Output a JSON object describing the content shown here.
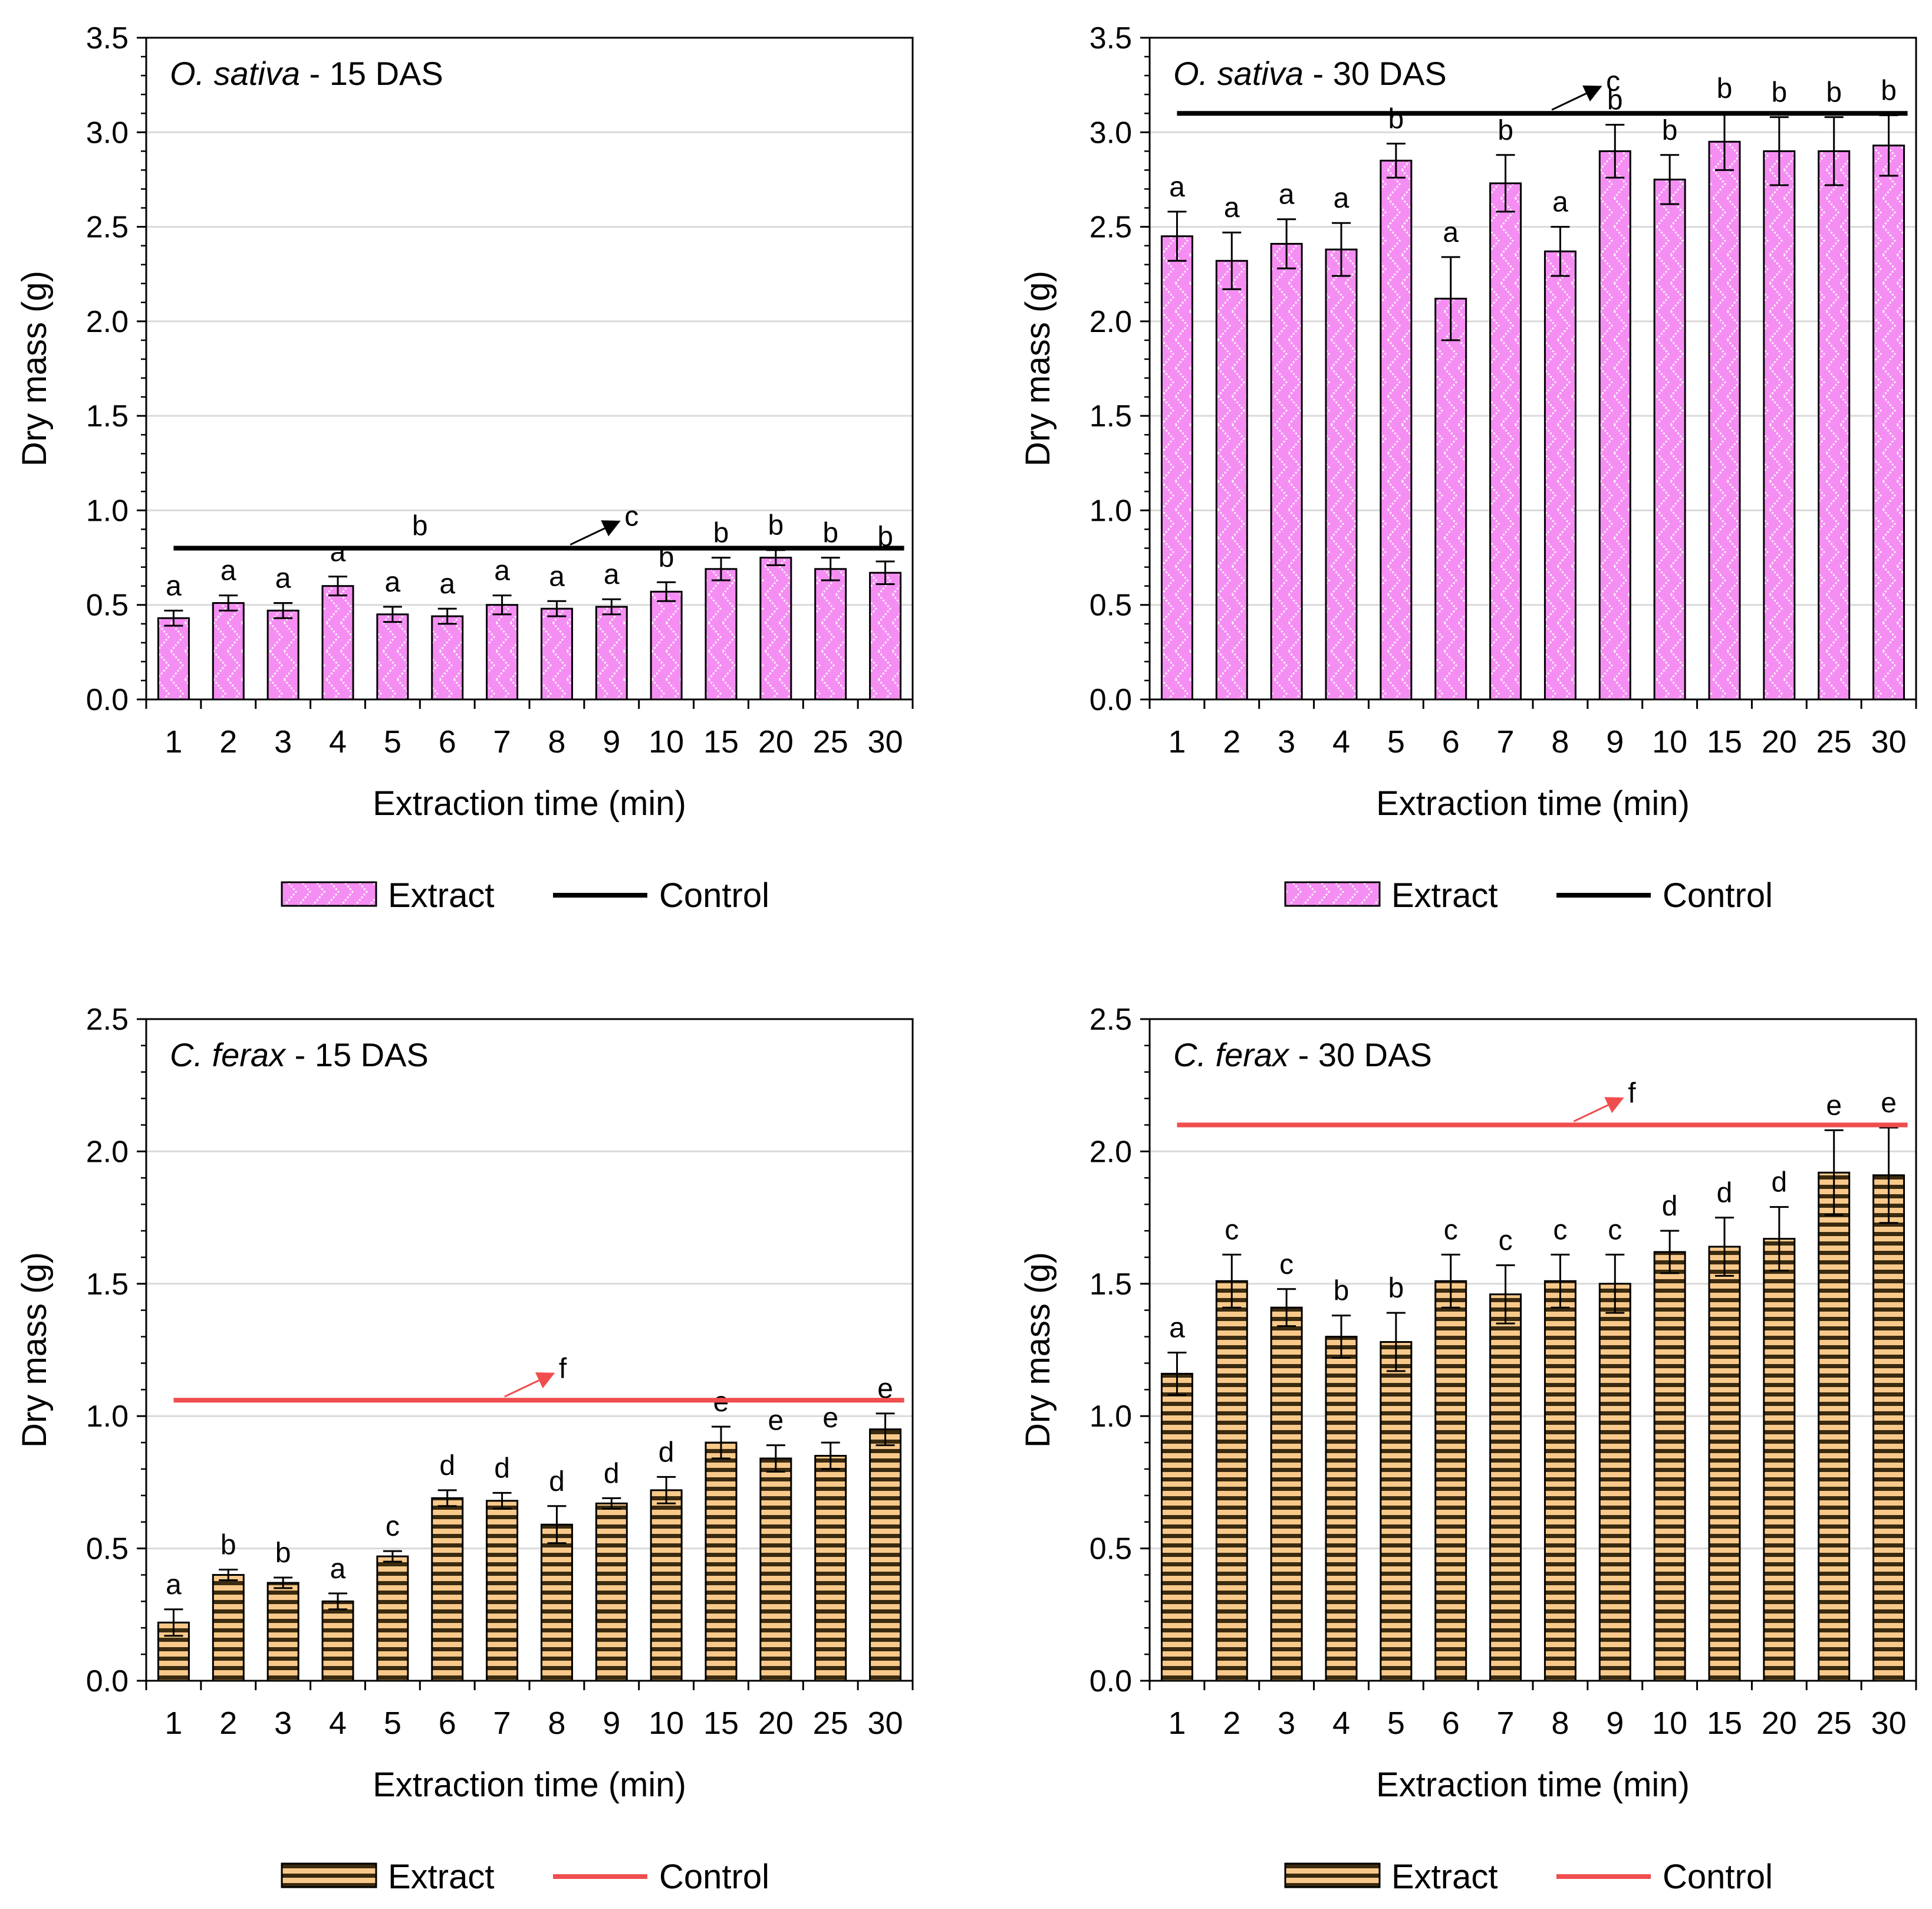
{
  "chart_data": [
    {
      "type": "bar",
      "title_italic": "O. sativa",
      "title_rest": " - 15 DAS",
      "xlabel": "Extraction time (min)",
      "ylabel": "Dry mass (g)",
      "ylim": [
        0,
        3.5
      ],
      "yticks": [
        "0.0",
        "0.5",
        "1.0",
        "1.5",
        "2.0",
        "2.5",
        "3.0",
        "3.5"
      ],
      "categories": [
        "1",
        "2",
        "3",
        "4",
        "5",
        "6",
        "7",
        "8",
        "9",
        "10",
        "15",
        "20",
        "25",
        "30"
      ],
      "series": [
        {
          "name": "Extract",
          "values": [
            0.43,
            0.51,
            0.47,
            0.6,
            0.45,
            0.44,
            0.5,
            0.48,
            0.49,
            0.57,
            0.69,
            0.75,
            0.69,
            0.67
          ],
          "errors": [
            0.04,
            0.04,
            0.04,
            0.05,
            0.04,
            0.04,
            0.05,
            0.04,
            0.04,
            0.05,
            0.06,
            0.04,
            0.06,
            0.06
          ]
        },
        {
          "name": "Control",
          "value": 0.8
        }
      ],
      "bar_letters": [
        "a",
        "a",
        "a",
        "a",
        "a",
        "a",
        "a",
        "a",
        "a",
        "b",
        "b",
        "b",
        "b",
        "b"
      ],
      "control_letters": [
        {
          "text": "b",
          "x": 4.5
        }
      ],
      "arrow_letter": "c",
      "arrow_at": 8,
      "legend": [
        "Extract",
        "Control"
      ],
      "style": "pink",
      "control_color": "#000000"
    },
    {
      "type": "bar",
      "title_italic": "O. sativa",
      "title_rest": " - 30 DAS",
      "xlabel": "Extraction time (min)",
      "ylabel": "Dry mass (g)",
      "ylim": [
        0,
        3.5
      ],
      "yticks": [
        "0.0",
        "0.5",
        "1.0",
        "1.5",
        "2.0",
        "2.5",
        "3.0",
        "3.5"
      ],
      "categories": [
        "1",
        "2",
        "3",
        "4",
        "5",
        "6",
        "7",
        "8",
        "9",
        "10",
        "15",
        "20",
        "25",
        "30"
      ],
      "series": [
        {
          "name": "Extract",
          "values": [
            2.45,
            2.32,
            2.41,
            2.38,
            2.85,
            2.12,
            2.73,
            2.37,
            2.9,
            2.75,
            2.95,
            2.9,
            2.9,
            2.93
          ],
          "errors": [
            0.13,
            0.15,
            0.13,
            0.14,
            0.09,
            0.22,
            0.15,
            0.13,
            0.14,
            0.13,
            0.15,
            0.18,
            0.18,
            0.16
          ]
        },
        {
          "name": "Control",
          "value": 3.1
        }
      ],
      "bar_letters": [
        "a",
        "a",
        "a",
        "a",
        "b",
        "a",
        "b",
        "a",
        "b",
        "b",
        "b",
        "b",
        "b",
        "b"
      ],
      "control_letters": [],
      "arrow_letter": "c",
      "arrow_at": 7.6,
      "legend": [
        "Extract",
        "Control"
      ],
      "style": "pink",
      "control_color": "#000000"
    },
    {
      "type": "bar",
      "title_italic": "C. ferax",
      "title_rest": " - 15 DAS",
      "xlabel": "Extraction time (min)",
      "ylabel": "Dry mass (g)",
      "ylim": [
        0,
        2.5
      ],
      "yticks": [
        "0.0",
        "0.5",
        "1.0",
        "1.5",
        "2.0",
        "2.5"
      ],
      "categories": [
        "1",
        "2",
        "3",
        "4",
        "5",
        "6",
        "7",
        "8",
        "9",
        "10",
        "15",
        "20",
        "25",
        "30"
      ],
      "series": [
        {
          "name": "Extract",
          "values": [
            0.22,
            0.4,
            0.37,
            0.3,
            0.47,
            0.69,
            0.68,
            0.59,
            0.67,
            0.72,
            0.9,
            0.84,
            0.85,
            0.95
          ],
          "errors": [
            0.05,
            0.02,
            0.02,
            0.03,
            0.02,
            0.03,
            0.03,
            0.07,
            0.02,
            0.05,
            0.06,
            0.05,
            0.05,
            0.06
          ]
        },
        {
          "name": "Control",
          "value": 1.06
        }
      ],
      "bar_letters": [
        "a",
        "b",
        "b",
        "a",
        "c",
        "d",
        "d",
        "d",
        "d",
        "d",
        "e",
        "e",
        "e",
        "e"
      ],
      "bar_letter_mode": "bars",
      "control_letters": [],
      "arrow_letter": "f",
      "arrow_at": 6.8,
      "legend": [
        "Extract",
        "Control"
      ],
      "style": "orange",
      "control_color": "#f04e4e"
    },
    {
      "type": "bar",
      "title_italic": "C. ferax",
      "title_rest": " - 30 DAS",
      "xlabel": "Extraction time (min)",
      "ylabel": "Dry mass (g)",
      "ylim": [
        0,
        2.5
      ],
      "yticks": [
        "0.0",
        "0.5",
        "1.0",
        "1.5",
        "2.0",
        "2.5"
      ],
      "categories": [
        "1",
        "2",
        "3",
        "4",
        "5",
        "6",
        "7",
        "8",
        "9",
        "10",
        "15",
        "20",
        "25",
        "30"
      ],
      "series": [
        {
          "name": "Extract",
          "values": [
            1.16,
            1.51,
            1.41,
            1.3,
            1.28,
            1.51,
            1.46,
            1.51,
            1.5,
            1.62,
            1.64,
            1.67,
            1.92,
            1.91
          ],
          "errors": [
            0.08,
            0.1,
            0.07,
            0.08,
            0.11,
            0.1,
            0.11,
            0.1,
            0.11,
            0.08,
            0.11,
            0.12,
            0.16,
            0.18
          ]
        },
        {
          "name": "Control",
          "value": 2.1
        }
      ],
      "bar_letters": [
        "a",
        "c",
        "c",
        "b",
        "b",
        "c",
        "c",
        "c",
        "c",
        "d",
        "d",
        "d",
        "e",
        "e"
      ],
      "control_letters": [],
      "arrow_letter": "f",
      "arrow_at": 8.0,
      "legend": [
        "Extract",
        "Control"
      ],
      "style": "orange",
      "control_color": "#f04e4e"
    }
  ]
}
